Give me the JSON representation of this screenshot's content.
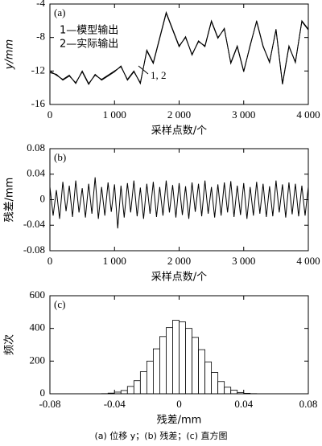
{
  "chart_data": [
    {
      "type": "line",
      "panel_label": "(a)",
      "annotation": "1, 2",
      "y_label": "y/mm",
      "x_label": "采样点数/个",
      "x": [
        0,
        100,
        200,
        300,
        400,
        500,
        600,
        700,
        800,
        900,
        1000,
        1100,
        1200,
        1300,
        1400,
        1500,
        1600,
        1700,
        1800,
        1900,
        2000,
        2100,
        2200,
        2300,
        2400,
        2500,
        2600,
        2700,
        2800,
        2900,
        3000,
        3100,
        3200,
        3300,
        3400,
        3500,
        3600,
        3700,
        3800,
        3900,
        4000
      ],
      "series": [
        {
          "name": "1—模型输出",
          "color": "#000000",
          "values": [
            -12,
            -12.5,
            -13,
            -12.5,
            -13.5,
            -12,
            -13.5,
            -12.5,
            -13,
            -12.5,
            -12,
            -11.5,
            -13,
            -12,
            -13.5,
            -9.5,
            -11,
            -8,
            -5,
            -7,
            -9,
            -8,
            -10,
            -8.5,
            -9,
            -6,
            -8,
            -7,
            -11,
            -9,
            -12,
            -9,
            -6,
            -9,
            -11,
            -7,
            -13.5,
            -9,
            -11,
            -6,
            -7
          ]
        },
        {
          "name": "2—实际输出",
          "color": "#000000",
          "values": [
            -12.2,
            -12.4,
            -13.1,
            -12.6,
            -13.4,
            -12.1,
            -13.6,
            -12.4,
            -13.1,
            -12.6,
            -12.1,
            -11.4,
            -13.1,
            -12.1,
            -13.4,
            -9.6,
            -11.1,
            -8.1,
            -5.1,
            -7.1,
            -9.1,
            -7.9,
            -10.1,
            -8.4,
            -9.1,
            -6.1,
            -8.1,
            -6.9,
            -11.1,
            -9.1,
            -12.1,
            -8.9,
            -6.1,
            -9.1,
            -10.9,
            -7.1,
            -13.6,
            -9.1,
            -10.9,
            -6.1,
            -7.1
          ]
        }
      ],
      "xlim": [
        0,
        4000
      ],
      "xticks": [
        0,
        {
          "value": 1000,
          "label": "1 000"
        },
        {
          "value": 2000,
          "label": "2 000"
        },
        {
          "value": 3000,
          "label": "3 000"
        },
        {
          "value": 4000,
          "label": "4 000"
        }
      ],
      "ylim": [
        -16,
        -4
      ],
      "yticks": [
        -16,
        -12,
        -8,
        -4
      ]
    },
    {
      "type": "line",
      "panel_label": "(b)",
      "y_label": "残差/mm",
      "x_label": "采样点数/个",
      "x": [
        0,
        50,
        100,
        150,
        200,
        250,
        300,
        350,
        400,
        450,
        500,
        550,
        600,
        650,
        700,
        750,
        800,
        850,
        900,
        950,
        1000,
        1050,
        1100,
        1150,
        1200,
        1250,
        1300,
        1350,
        1400,
        1450,
        1500,
        1550,
        1600,
        1650,
        1700,
        1750,
        1800,
        1850,
        1900,
        1950,
        2000,
        2050,
        2100,
        2150,
        2200,
        2250,
        2300,
        2350,
        2400,
        2450,
        2500,
        2550,
        2600,
        2650,
        2700,
        2750,
        2800,
        2850,
        2900,
        2950,
        3000,
        3050,
        3100,
        3150,
        3200,
        3250,
        3300,
        3350,
        3400,
        3450,
        3500,
        3550,
        3600,
        3650,
        3700,
        3750,
        3800,
        3850,
        3900,
        3950,
        4000
      ],
      "series": [
        {
          "color": "#000000",
          "values": [
            0.02,
            -0.025,
            0.015,
            -0.03,
            0.028,
            -0.018,
            0.022,
            -0.027,
            0.03,
            -0.02,
            0.018,
            -0.028,
            0.025,
            -0.022,
            0.035,
            -0.03,
            0.02,
            -0.025,
            0.027,
            -0.019,
            0.024,
            -0.045,
            0.022,
            -0.028,
            0.026,
            -0.02,
            0.03,
            -0.026,
            0.019,
            -0.03,
            0.025,
            -0.022,
            0.028,
            -0.027,
            0.02,
            -0.025,
            0.03,
            -0.02,
            0.023,
            -0.028,
            0.026,
            -0.024,
            0.021,
            -0.03,
            0.027,
            -0.019,
            0.025,
            -0.026,
            0.03,
            -0.022,
            0.02,
            -0.028,
            0.024,
            -0.025,
            0.027,
            -0.02,
            0.029,
            -0.027,
            0.022,
            -0.024,
            0.026,
            -0.03,
            0.02,
            -0.025,
            0.028,
            -0.022,
            0.025,
            -0.027,
            0.021,
            -0.026,
            0.03,
            -0.02,
            0.024,
            -0.028,
            0.027,
            -0.023,
            0.025,
            -0.026,
            0.022,
            -0.025,
            0.02
          ]
        }
      ],
      "xlim": [
        0,
        4000
      ],
      "xticks": [
        0,
        {
          "value": 1000,
          "label": "1 000"
        },
        {
          "value": 2000,
          "label": "2 000"
        },
        {
          "value": 3000,
          "label": "3 000"
        },
        {
          "value": 4000,
          "label": "4 000"
        }
      ],
      "ylim": [
        -0.08,
        0.08
      ],
      "yticks": [
        -0.08,
        -0.04,
        0,
        0.04,
        0.08
      ]
    },
    {
      "type": "histogram",
      "panel_label": "(c)",
      "y_label": "频次",
      "x_label": "残差/mm",
      "color": "#ffffff",
      "bins": [
        -0.048,
        -0.044,
        -0.04,
        -0.036,
        -0.032,
        -0.028,
        -0.024,
        -0.02,
        -0.016,
        -0.012,
        -0.008,
        -0.004,
        0,
        0.004,
        0.008,
        0.012,
        0.016,
        0.02,
        0.024,
        0.028,
        0.032,
        0.036,
        0.04,
        0.044,
        0.048
      ],
      "values": [
        1,
        4,
        10,
        20,
        45,
        80,
        135,
        200,
        275,
        350,
        405,
        450,
        440,
        400,
        345,
        270,
        195,
        130,
        75,
        40,
        22,
        8,
        3,
        1
      ],
      "xlim": [
        -0.08,
        0.08
      ],
      "xticks": [
        -0.08,
        -0.04,
        0,
        0.04,
        0.08
      ],
      "ylim": [
        0,
        600
      ],
      "yticks": [
        0,
        200,
        400,
        600
      ]
    }
  ],
  "caption": "(a) 位移 y；(b) 残差；(c) 直方图"
}
